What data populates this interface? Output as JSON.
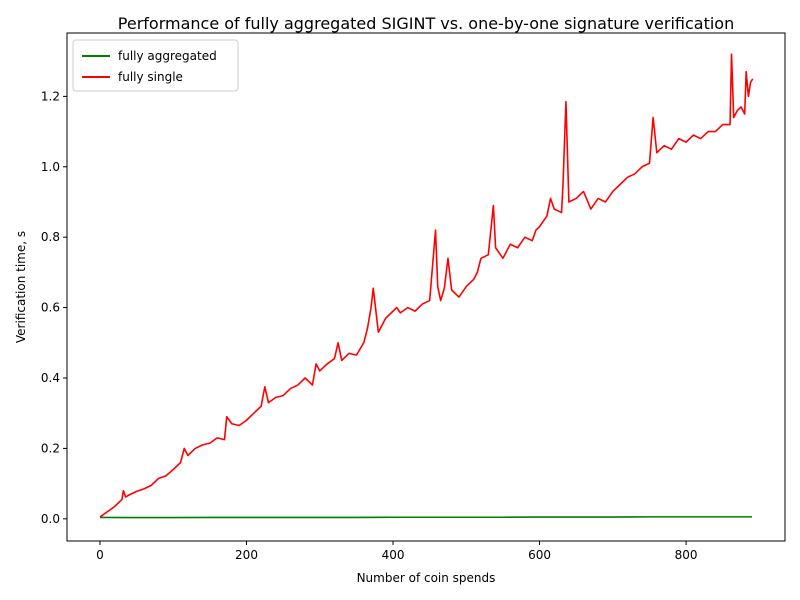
{
  "chart_data": {
    "type": "line",
    "title": "Performance of fully aggregated SIGINT vs. one-by-one signature verification",
    "xlabel": "Number of coin spends",
    "ylabel": "Verification time, s",
    "xlim": [
      -45,
      935
    ],
    "ylim": [
      -0.063,
      1.38
    ],
    "xticks": [
      0,
      200,
      400,
      600,
      800
    ],
    "xtick_labels": [
      "0",
      "200",
      "400",
      "600",
      "800"
    ],
    "yticks": [
      0.0,
      0.2,
      0.4,
      0.6,
      0.8,
      1.0,
      1.2
    ],
    "ytick_labels": [
      "0.0",
      "0.2",
      "0.4",
      "0.6",
      "0.8",
      "1.0",
      "1.2"
    ],
    "grid": false,
    "legend_position": "top-left",
    "series": [
      {
        "name": "fully aggregated",
        "color": "#008000",
        "x": [
          0,
          50,
          100,
          150,
          200,
          250,
          300,
          350,
          400,
          450,
          500,
          550,
          600,
          650,
          700,
          750,
          800,
          850,
          890
        ],
        "y": [
          0.004,
          0.0035,
          0.0035,
          0.004,
          0.004,
          0.004,
          0.004,
          0.004,
          0.0045,
          0.0045,
          0.0045,
          0.0045,
          0.005,
          0.005,
          0.005,
          0.0055,
          0.0055,
          0.0055,
          0.0055
        ]
      },
      {
        "name": "fully single",
        "color": "#ff0000",
        "x": [
          0,
          10,
          20,
          30,
          32,
          35,
          40,
          50,
          60,
          70,
          80,
          90,
          100,
          110,
          115,
          120,
          130,
          140,
          150,
          160,
          170,
          173,
          180,
          190,
          200,
          210,
          220,
          225,
          230,
          240,
          250,
          260,
          270,
          275,
          280,
          290,
          295,
          300,
          310,
          320,
          325,
          330,
          340,
          350,
          360,
          365,
          370,
          373,
          380,
          390,
          400,
          405,
          410,
          420,
          430,
          440,
          450,
          458,
          461,
          465,
          470,
          475,
          480,
          490,
          500,
          510,
          515,
          520,
          530,
          537,
          540,
          550,
          560,
          570,
          580,
          590,
          595,
          600,
          610,
          615,
          620,
          630,
          632,
          636,
          640,
          650,
          660,
          670,
          680,
          690,
          700,
          710,
          720,
          730,
          740,
          750,
          755,
          760,
          770,
          780,
          790,
          800,
          810,
          820,
          830,
          840,
          850,
          860,
          862,
          865,
          870,
          875,
          880,
          882,
          885,
          888,
          891
        ],
        "y": [
          0.005,
          0.02,
          0.035,
          0.055,
          0.08,
          0.062,
          0.068,
          0.078,
          0.085,
          0.095,
          0.115,
          0.122,
          0.14,
          0.16,
          0.2,
          0.18,
          0.2,
          0.21,
          0.215,
          0.23,
          0.225,
          0.29,
          0.27,
          0.265,
          0.28,
          0.3,
          0.32,
          0.375,
          0.33,
          0.345,
          0.35,
          0.37,
          0.38,
          0.39,
          0.4,
          0.38,
          0.44,
          0.42,
          0.44,
          0.455,
          0.5,
          0.45,
          0.47,
          0.465,
          0.5,
          0.54,
          0.6,
          0.655,
          0.53,
          0.57,
          0.59,
          0.6,
          0.585,
          0.6,
          0.59,
          0.61,
          0.62,
          0.82,
          0.66,
          0.62,
          0.655,
          0.74,
          0.65,
          0.63,
          0.66,
          0.68,
          0.7,
          0.74,
          0.75,
          0.89,
          0.77,
          0.74,
          0.78,
          0.77,
          0.8,
          0.79,
          0.82,
          0.83,
          0.86,
          0.91,
          0.88,
          0.87,
          0.95,
          1.185,
          0.9,
          0.91,
          0.93,
          0.88,
          0.91,
          0.9,
          0.93,
          0.95,
          0.97,
          0.98,
          1.0,
          1.01,
          1.14,
          1.04,
          1.06,
          1.05,
          1.08,
          1.07,
          1.09,
          1.08,
          1.1,
          1.1,
          1.12,
          1.12,
          1.32,
          1.14,
          1.16,
          1.17,
          1.15,
          1.27,
          1.2,
          1.24,
          1.25
        ]
      }
    ]
  }
}
